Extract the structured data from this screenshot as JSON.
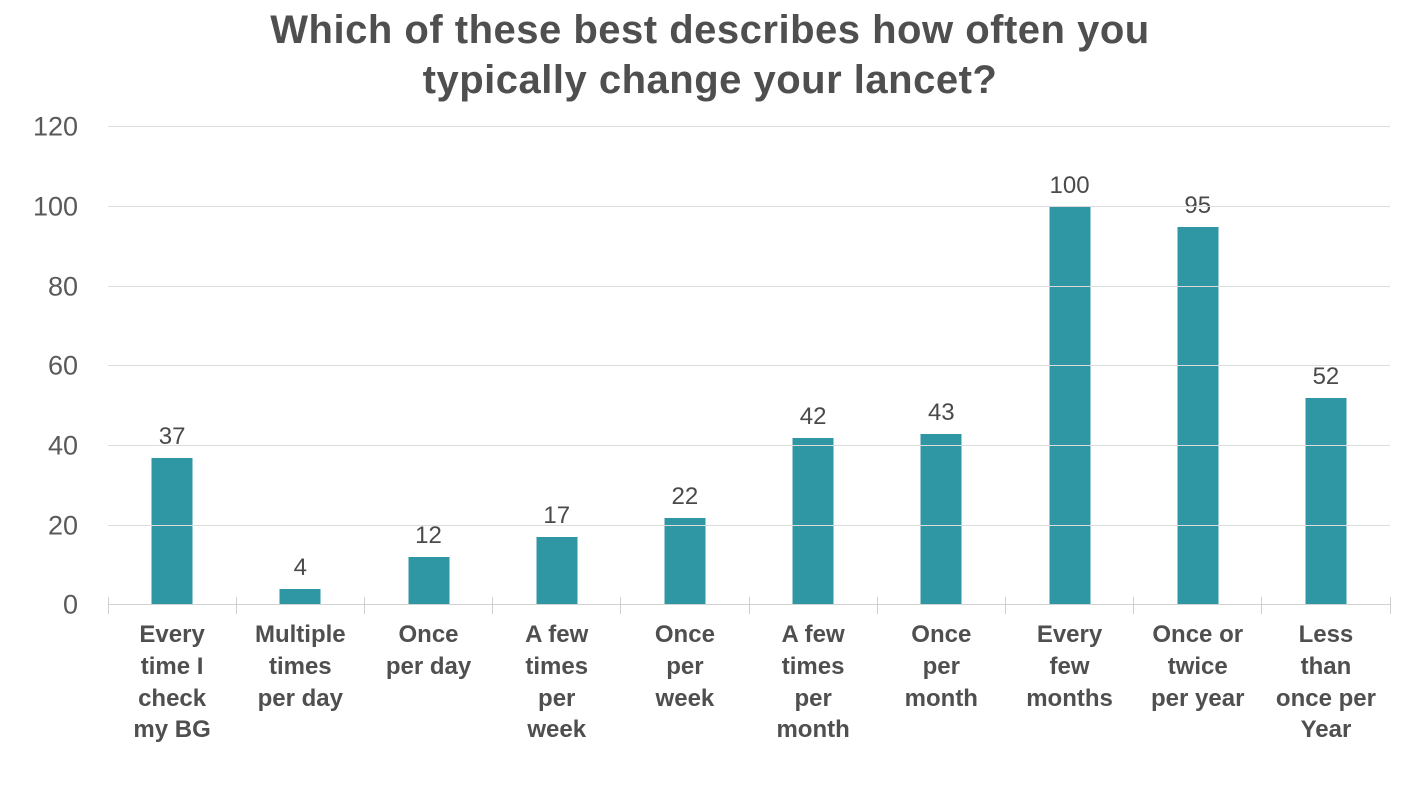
{
  "colors": {
    "bar": "#2F96A3",
    "title_text": "#4F4F4F",
    "axis_text": "#595959",
    "value_text": "#4A4A4A",
    "category_text": "#4F4F4F",
    "gridline": "#DCDCDC"
  },
  "chart_data": {
    "type": "bar",
    "title": "Which of these best describes how often you typically change your lancet?",
    "title_lines": [
      "Which of these best describes how often you",
      "typically change your lancet?"
    ],
    "categories": [
      "Every time I check my BG",
      "Multiple times per day",
      "Once per day",
      "A few times per week",
      "Once per week",
      "A few times per month",
      "Once per month",
      "Every few months",
      "Once or twice per year",
      "Less than once per Year"
    ],
    "category_lines": [
      [
        "Every",
        "time I",
        "check",
        "my BG"
      ],
      [
        "Multiple",
        "times",
        "per day"
      ],
      [
        "Once",
        "per day"
      ],
      [
        "A few",
        "times",
        "per",
        "week"
      ],
      [
        "Once",
        "per",
        "week"
      ],
      [
        "A few",
        "times",
        "per",
        "month"
      ],
      [
        "Once",
        "per",
        "month"
      ],
      [
        "Every",
        "few",
        "months"
      ],
      [
        "Once or",
        "twice",
        "per year"
      ],
      [
        "Less",
        "than",
        "once per",
        "Year"
      ]
    ],
    "values": [
      37,
      4,
      12,
      17,
      22,
      42,
      43,
      100,
      95,
      52
    ],
    "xlabel": "",
    "ylabel": "",
    "y_ticks": [
      0,
      20,
      40,
      60,
      80,
      100,
      120
    ],
    "ylim": [
      0,
      120
    ],
    "grid": "horizontal",
    "legend": "none",
    "bar_color": "#2F96A3"
  }
}
